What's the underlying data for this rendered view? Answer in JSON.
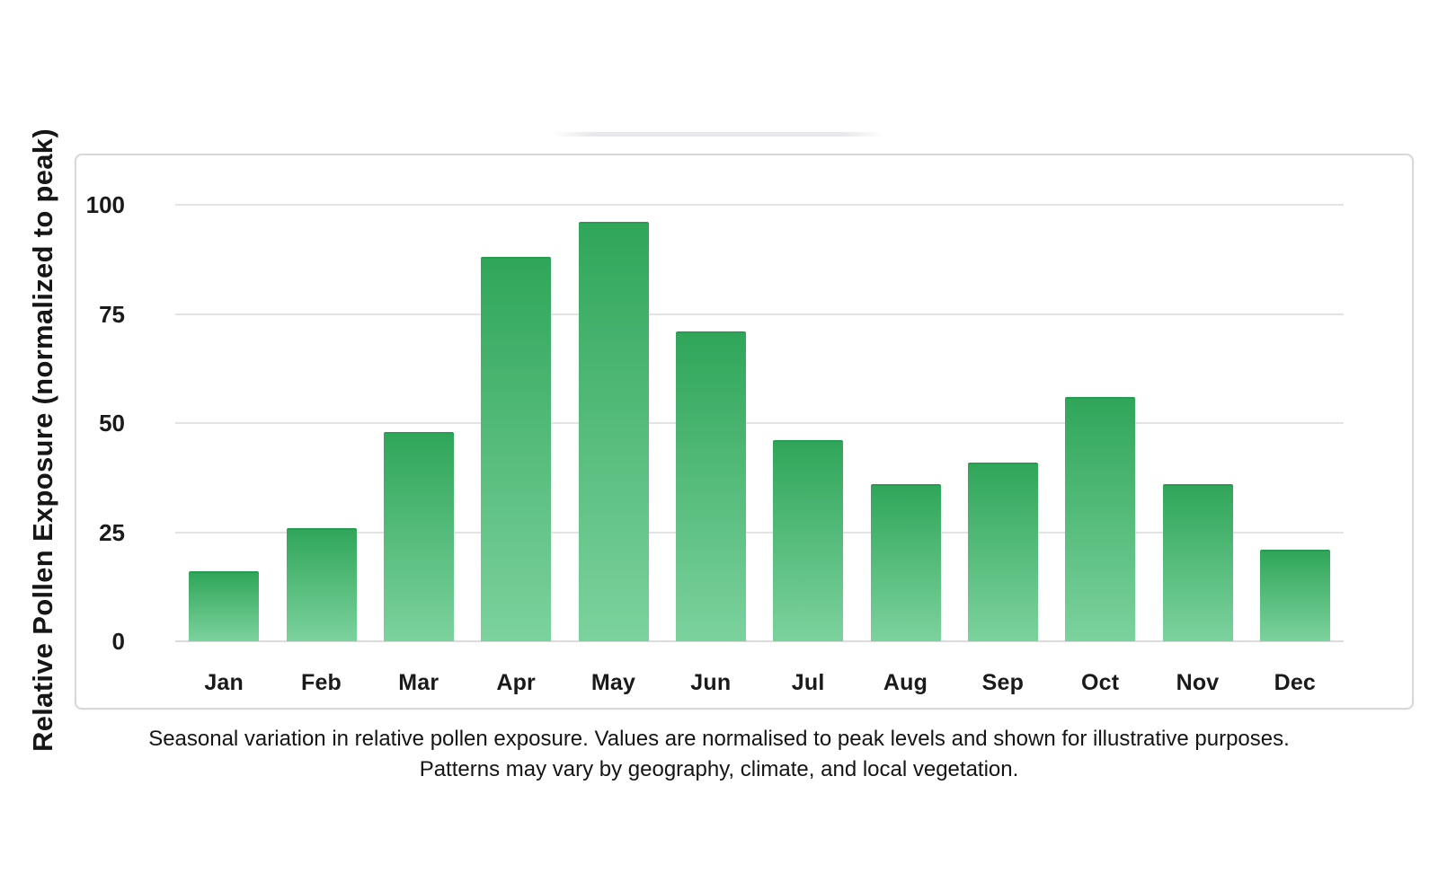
{
  "chart_data": {
    "type": "bar",
    "title": "",
    "xlabel": "",
    "ylabel": "Relative Pollen Exposure (normalized to peak)",
    "categories": [
      "Jan",
      "Feb",
      "Mar",
      "Apr",
      "May",
      "Jun",
      "Jul",
      "Aug",
      "Sep",
      "Oct",
      "Nov",
      "Dec"
    ],
    "values": [
      16,
      26,
      48,
      88,
      96,
      71,
      46,
      36,
      41,
      56,
      36,
      21
    ],
    "yticks": [
      0,
      25,
      50,
      75,
      100
    ],
    "ylim": [
      0,
      111
    ],
    "grid": true,
    "legend": false,
    "colors": {
      "bar_gradient_top": "#30a65a",
      "bar_gradient_bottom": "#7cd29d",
      "bar_top_cap": "#259d50",
      "gridline": "#e3e3e5",
      "axis_text": "#1a1a1a",
      "panel_border": "#d8d8da"
    }
  },
  "caption": {
    "line1": "Seasonal variation in relative pollen exposure. Values are normalised to peak levels and shown for illustrative purposes.",
    "line2": "Patterns may vary by geography, climate, and local vegetation."
  }
}
